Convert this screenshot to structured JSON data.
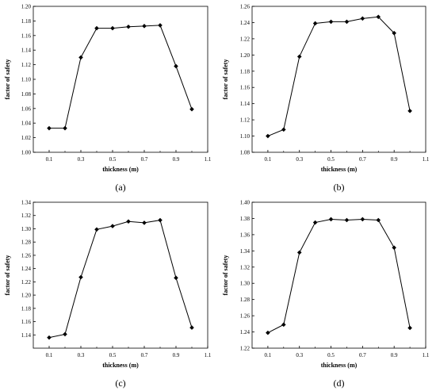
{
  "chart_data": [
    {
      "type": "line",
      "panel_label": "(a)",
      "xlabel": "thickness (m)",
      "ylabel": "factor of safety",
      "xlim": [
        0.0,
        1.1
      ],
      "ylim": [
        1.0,
        1.2
      ],
      "xticks": [
        "0.1",
        "0.3",
        "0.5",
        "0.7",
        "0.9",
        "1.1"
      ],
      "yticks": [
        "1.00",
        "1.02",
        "1.04",
        "1.06",
        "1.08",
        "1.10",
        "1.12",
        "1.14",
        "1.16",
        "1.18",
        "1.20"
      ],
      "x": [
        0.1,
        0.2,
        0.3,
        0.4,
        0.5,
        0.6,
        0.7,
        0.8,
        0.9,
        1.0
      ],
      "y": [
        1.033,
        1.033,
        1.13,
        1.17,
        1.17,
        1.172,
        1.173,
        1.174,
        1.118,
        1.059
      ],
      "marker": "diamond",
      "grid": false
    },
    {
      "type": "line",
      "panel_label": "(b)",
      "xlabel": "thickness (m)",
      "ylabel": "factor of safety",
      "xlim": [
        0.0,
        1.1
      ],
      "ylim": [
        1.08,
        1.26
      ],
      "xticks": [
        "0.1",
        "0.3",
        "0.5",
        "0.7",
        "0.9",
        "1.1"
      ],
      "yticks": [
        "1.08",
        "1.10",
        "1.12",
        "1.14",
        "1.16",
        "1.18",
        "1.20",
        "1.22",
        "1.24",
        "1.26"
      ],
      "x": [
        0.1,
        0.2,
        0.3,
        0.4,
        0.5,
        0.6,
        0.7,
        0.8,
        0.9,
        1.0
      ],
      "y": [
        1.1,
        1.108,
        1.198,
        1.239,
        1.241,
        1.241,
        1.245,
        1.247,
        1.227,
        1.131
      ],
      "marker": "diamond",
      "grid": false
    },
    {
      "type": "line",
      "panel_label": "(c)",
      "xlabel": "thickness (m)",
      "ylabel": "factor of safety",
      "xlim": [
        0.0,
        1.1
      ],
      "ylim": [
        1.12,
        1.34
      ],
      "xticks": [
        "0.1",
        "0.3",
        "0.5",
        "0.7",
        "0.9",
        "1.1"
      ],
      "yticks": [
        "1.14",
        "1.16",
        "1.18",
        "1.20",
        "1.22",
        "1.24",
        "1.26",
        "1.28",
        "1.30",
        "1.32",
        "1.34"
      ],
      "x": [
        0.1,
        0.2,
        0.3,
        0.4,
        0.5,
        0.6,
        0.7,
        0.8,
        0.9,
        1.0
      ],
      "y": [
        1.136,
        1.141,
        1.227,
        1.299,
        1.304,
        1.311,
        1.309,
        1.313,
        1.226,
        1.151
      ],
      "marker": "diamond",
      "grid": false
    },
    {
      "type": "line",
      "panel_label": "(d)",
      "xlabel": "thickness (m)",
      "ylabel": "factor of safety",
      "xlim": [
        0.0,
        1.1
      ],
      "ylim": [
        1.22,
        1.4
      ],
      "xticks": [
        "0.1",
        "0.3",
        "0.5",
        "0.7",
        "0.9",
        "1.1"
      ],
      "yticks": [
        "1.22",
        "1.24",
        "1.26",
        "1.28",
        "1.30",
        "1.32",
        "1.34",
        "1.36",
        "1.38",
        "1.40"
      ],
      "x": [
        0.1,
        0.2,
        0.3,
        0.4,
        0.5,
        0.6,
        0.7,
        0.8,
        0.9,
        1.0
      ],
      "y": [
        1.239,
        1.249,
        1.338,
        1.375,
        1.379,
        1.378,
        1.379,
        1.378,
        1.344,
        1.245
      ],
      "marker": "diamond",
      "grid": false
    }
  ]
}
